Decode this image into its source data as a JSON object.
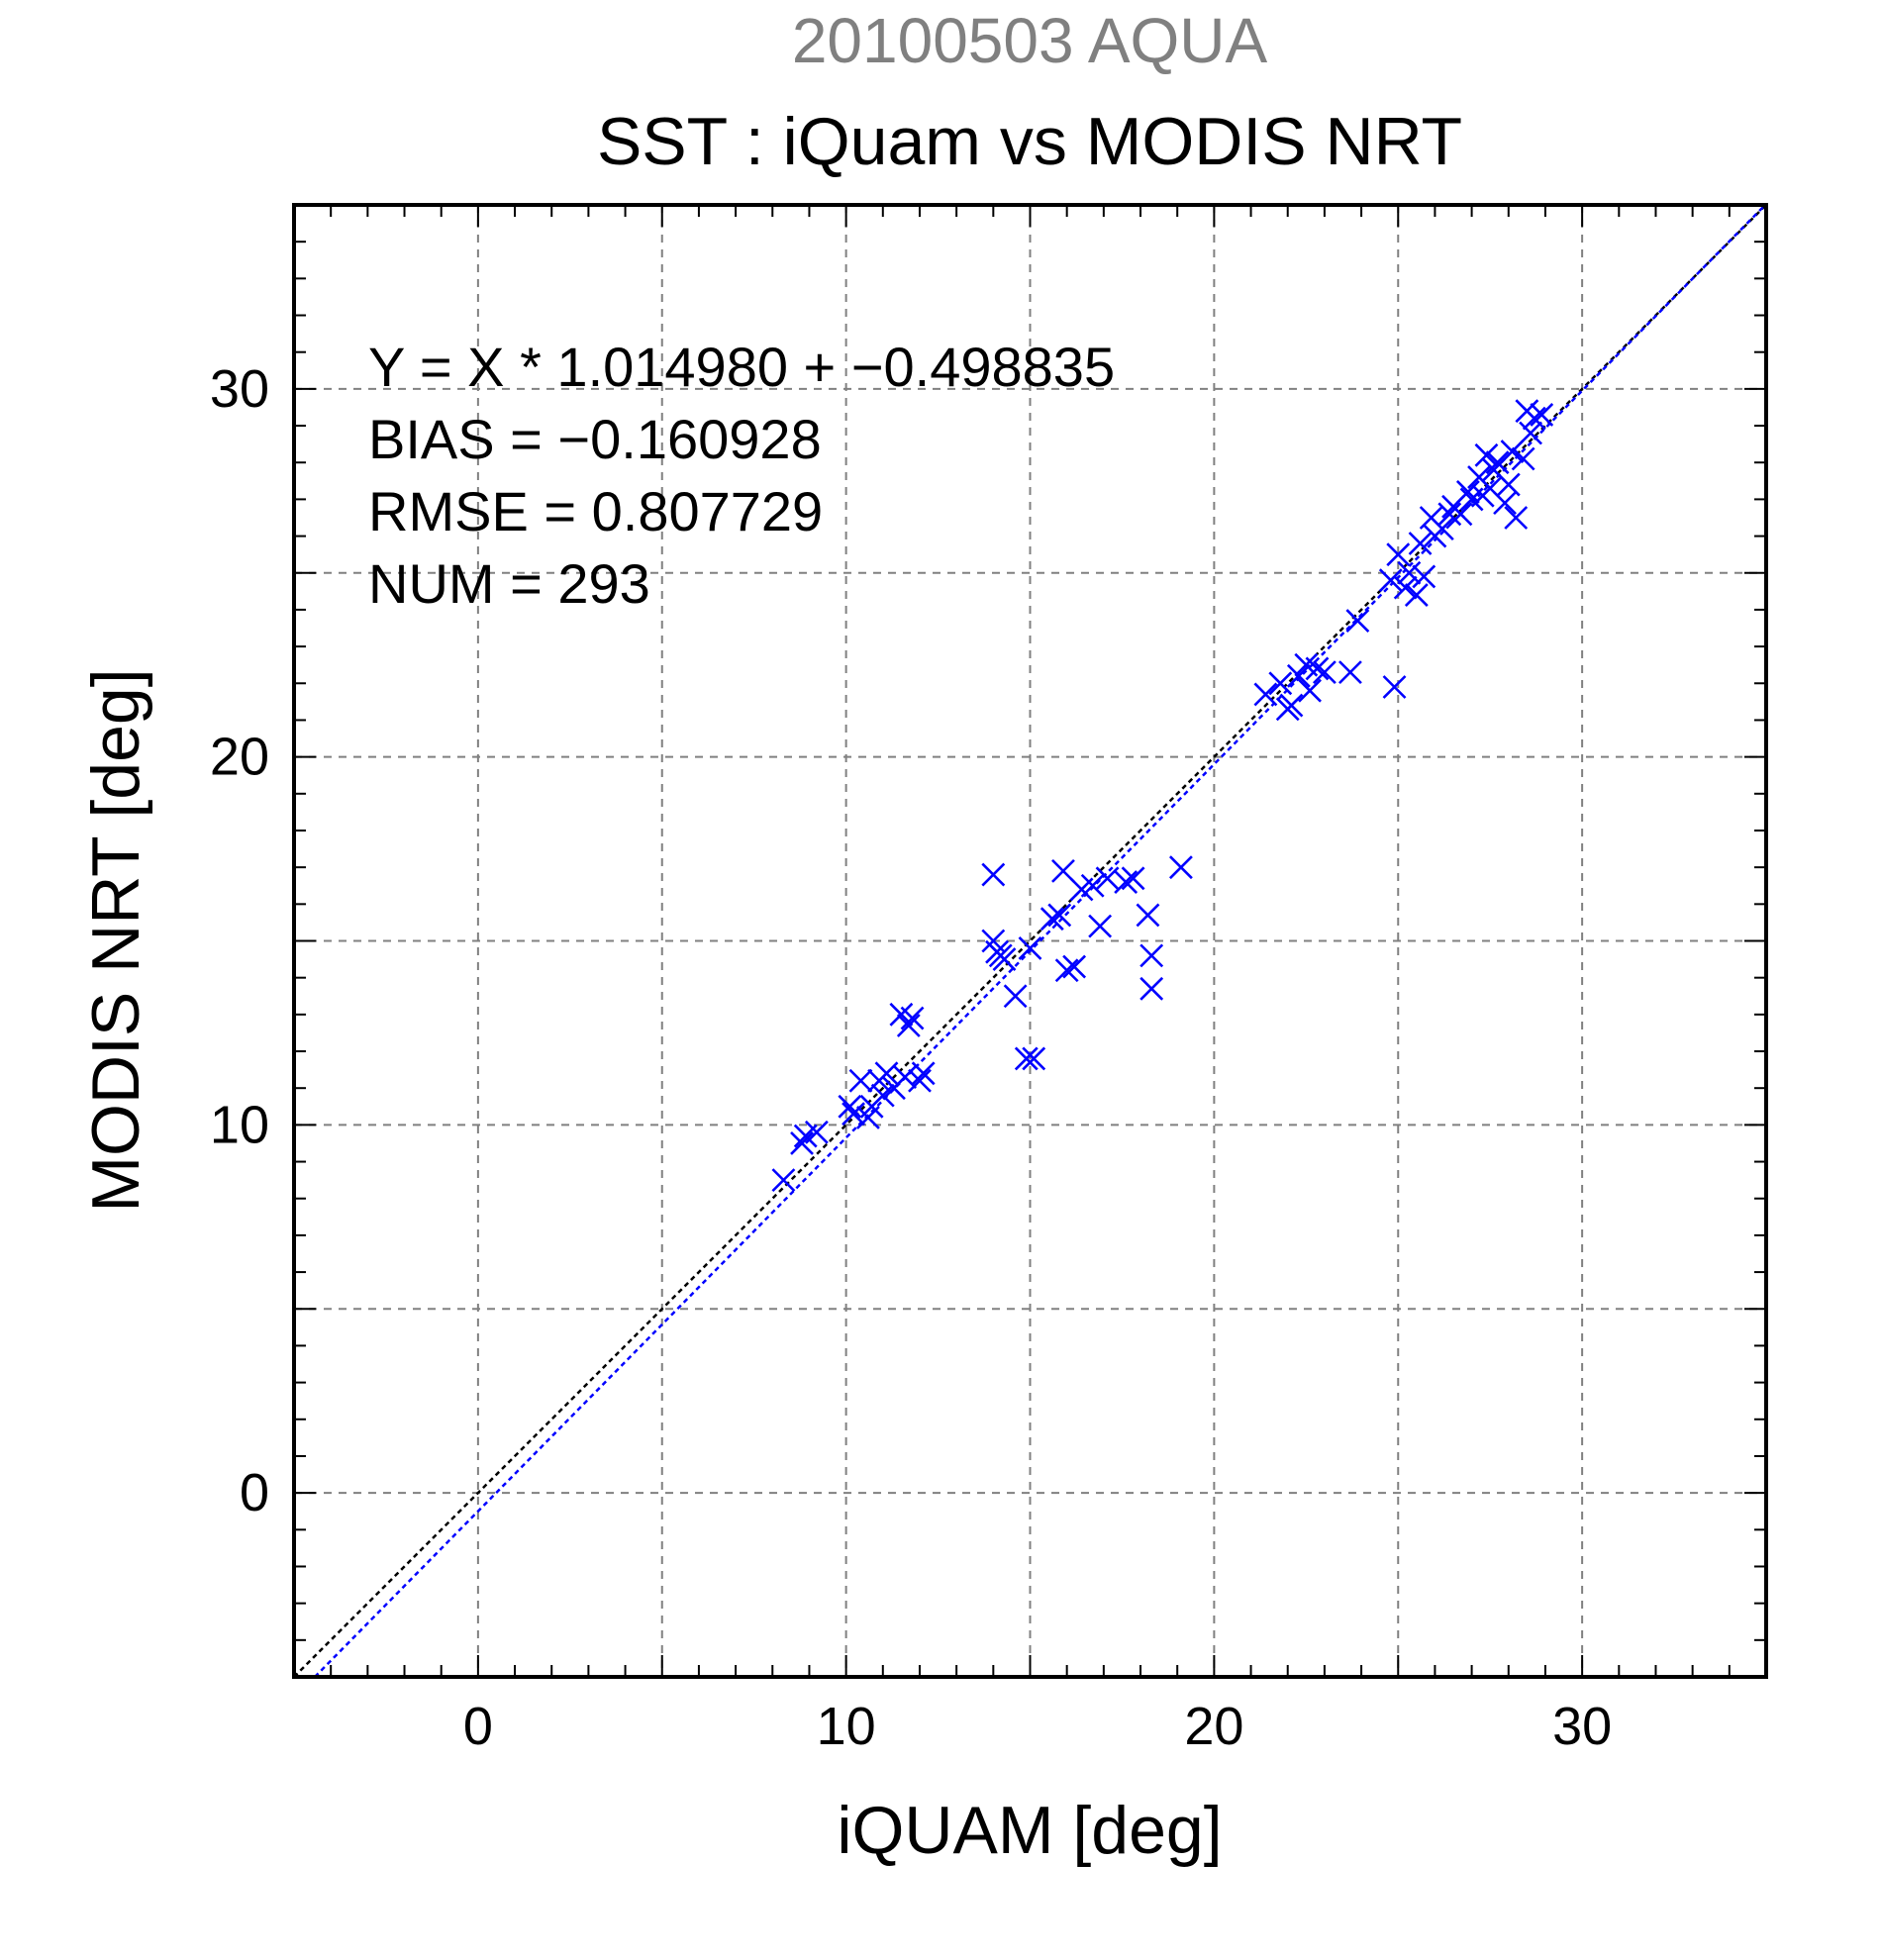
{
  "chart_data": {
    "type": "scatter",
    "title": "20100503 AQUA",
    "subtitle": "SST : iQuam vs MODIS NRT",
    "xlabel": "iQUAM [deg]",
    "ylabel": "MODIS NRT [deg]",
    "xlim": [
      -5,
      35
    ],
    "ylim": [
      -5,
      35
    ],
    "x_ticks": [
      0,
      10,
      20,
      30
    ],
    "y_ticks": [
      0,
      10,
      20,
      30
    ],
    "x_tick_labels": [
      "0",
      "10",
      "20",
      "30"
    ],
    "y_tick_labels": [
      "0",
      "10",
      "20",
      "30"
    ],
    "grid": true,
    "annotations": [
      "Y = X * 1.014980 + −0.498835",
      "BIAS = −0.160928",
      "RMSE = 0.807729",
      "NUM = 293"
    ],
    "colors": {
      "title": "#808080",
      "points": "#0000ff",
      "fit_line": "#0000ff",
      "identity_line": "#000000",
      "grid": "#808080"
    },
    "identity_line": {
      "slope": 1,
      "intercept": 0
    },
    "fit_line": {
      "slope": 1.01498,
      "intercept": -0.498835
    },
    "series": [
      {
        "marker": "x",
        "x": [
          8.3,
          8.8,
          8.9,
          9.2,
          10.1,
          10.2,
          10.4,
          10.6,
          10.7,
          10.9,
          11.0,
          11.1,
          11.3,
          11.5,
          11.6,
          11.7,
          11.8,
          12.0,
          12.1,
          14.0,
          14.0,
          14.1,
          14.2,
          14.3,
          14.6,
          14.9,
          15.0,
          15.1,
          15.6,
          15.8,
          15.9,
          16.0,
          16.2,
          16.4,
          16.7,
          16.9,
          17.1,
          17.6,
          17.8,
          18.2,
          18.3,
          18.3,
          19.1,
          21.4,
          21.8,
          22.0,
          22.1,
          22.3,
          22.5,
          22.6,
          22.8,
          23.0,
          23.7,
          23.9,
          24.8,
          24.9,
          25.0,
          25.2,
          25.3,
          25.5,
          25.6,
          25.7,
          25.9,
          26.0,
          26.2,
          26.4,
          26.5,
          26.7,
          26.9,
          27.0,
          27.2,
          27.3,
          27.4,
          27.5,
          27.6,
          27.7,
          27.9,
          28.0,
          28.1,
          28.2,
          28.4,
          28.5,
          28.6,
          28.7,
          28.9
        ],
        "y": [
          8.5,
          9.5,
          9.7,
          9.8,
          10.5,
          10.3,
          11.2,
          10.2,
          10.5,
          11.2,
          10.8,
          11.4,
          11.0,
          13.0,
          11.3,
          12.7,
          12.9,
          11.2,
          11.4,
          16.8,
          15.0,
          14.7,
          14.6,
          14.5,
          13.5,
          11.8,
          14.8,
          11.8,
          15.6,
          15.7,
          16.9,
          14.2,
          14.3,
          16.4,
          16.5,
          15.4,
          16.7,
          16.6,
          16.7,
          15.7,
          14.6,
          13.7,
          17.0,
          21.7,
          22.0,
          21.3,
          21.4,
          22.2,
          22.5,
          21.8,
          22.4,
          22.3,
          22.3,
          23.7,
          24.8,
          21.9,
          25.5,
          24.6,
          25.0,
          24.4,
          25.8,
          24.9,
          26.5,
          26.0,
          26.2,
          26.6,
          26.8,
          26.6,
          27.2,
          27.0,
          27.6,
          27.1,
          28.2,
          27.3,
          27.8,
          28.0,
          26.9,
          27.4,
          28.3,
          26.5,
          28.1,
          29.4,
          28.8,
          29.2,
          29.3
        ]
      }
    ]
  }
}
